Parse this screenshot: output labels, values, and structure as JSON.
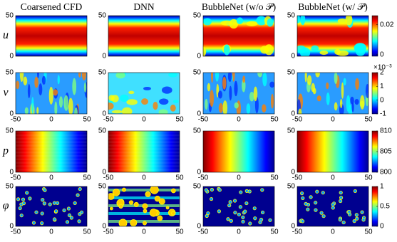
{
  "columns": [
    "Coarsened CFD",
    "DNN",
    "BubbleNet (w/o 𝒫)",
    "BubbleNet (w/ 𝒫)"
  ],
  "rows": [
    {
      "label": "u",
      "colorbar": {
        "lim": [
          -0.001,
          0.026
        ],
        "ticks": [
          0,
          0.02
        ]
      }
    },
    {
      "label": "v",
      "colorbar": {
        "lim": [
          -1,
          2
        ],
        "ticks": [
          -1,
          0,
          1,
          2
        ],
        "exponent": "×10⁻³"
      }
    },
    {
      "label": "p",
      "colorbar": {
        "lim": [
          800,
          810
        ],
        "ticks": [
          800,
          805,
          810
        ]
      }
    },
    {
      "label": "φ",
      "colorbar": {
        "lim": [
          0,
          1
        ],
        "ticks": [
          0,
          0.5,
          1
        ]
      }
    }
  ],
  "xlim": [
    -50,
    50
  ],
  "xticks": [
    -50,
    0,
    50
  ],
  "ylim": [
    0,
    50
  ],
  "yticks": [
    0,
    50
  ]
}
